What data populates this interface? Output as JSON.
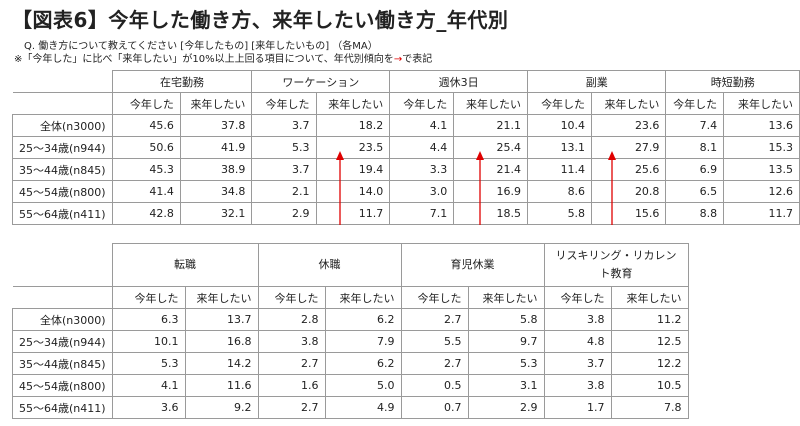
{
  "header": {
    "title": "【図表6】今年した働き方、来年したい働き方_年代別",
    "question": "Q. 働き方について教えてください [今年したもの] [来年したいもの] （各MA）",
    "note_before": "※「今年した」に比べ「来年したい」が10%以上上回る項目について、年代別傾向を",
    "note_arrow": "→",
    "note_after": "で表記"
  },
  "colors": {
    "arrow": "#e00000",
    "border": "#9a9a9a"
  },
  "sub_labels": {
    "this_year": "今年した",
    "next_year": "来年したい"
  },
  "row_labels": [
    "全体(n3000)",
    "25～34歳(n944)",
    "35～44歳(n845)",
    "45～54歳(n800)",
    "55～64歳(n411)"
  ],
  "table1": {
    "groups": [
      "在宅勤務",
      "ワーケーション",
      "週休3日",
      "副業",
      "時短勤務"
    ],
    "rows": [
      [
        "45.6",
        "37.8",
        "3.7",
        "18.2",
        "4.1",
        "21.1",
        "10.4",
        "23.6",
        "7.4",
        "13.6"
      ],
      [
        "50.6",
        "41.9",
        "5.3",
        "23.5",
        "4.4",
        "25.4",
        "13.1",
        "27.9",
        "8.1",
        "15.3"
      ],
      [
        "45.3",
        "38.9",
        "3.7",
        "19.4",
        "3.3",
        "21.4",
        "11.4",
        "25.6",
        "6.9",
        "13.5"
      ],
      [
        "41.4",
        "34.8",
        "2.1",
        "14.0",
        "3.0",
        "16.9",
        "8.6",
        "20.8",
        "6.5",
        "12.6"
      ],
      [
        "42.8",
        "32.1",
        "2.9",
        "11.7",
        "7.1",
        "18.5",
        "5.8",
        "15.6",
        "8.8",
        "11.7"
      ]
    ]
  },
  "table2": {
    "groups": [
      "転職",
      "休職",
      "育児休業",
      "リスキリング・リカレント教育"
    ],
    "rows": [
      [
        "6.3",
        "13.7",
        "2.8",
        "6.2",
        "2.7",
        "5.8",
        "3.8",
        "11.2"
      ],
      [
        "10.1",
        "16.8",
        "3.8",
        "7.9",
        "5.5",
        "9.7",
        "4.8",
        "12.5"
      ],
      [
        "5.3",
        "14.2",
        "2.7",
        "6.2",
        "2.7",
        "5.3",
        "3.7",
        "12.2"
      ],
      [
        "4.1",
        "11.6",
        "1.6",
        "5.0",
        "0.5",
        "3.1",
        "3.8",
        "10.5"
      ],
      [
        "3.6",
        "9.2",
        "2.7",
        "4.9",
        "0.7",
        "2.9",
        "1.7",
        "7.8"
      ]
    ]
  }
}
